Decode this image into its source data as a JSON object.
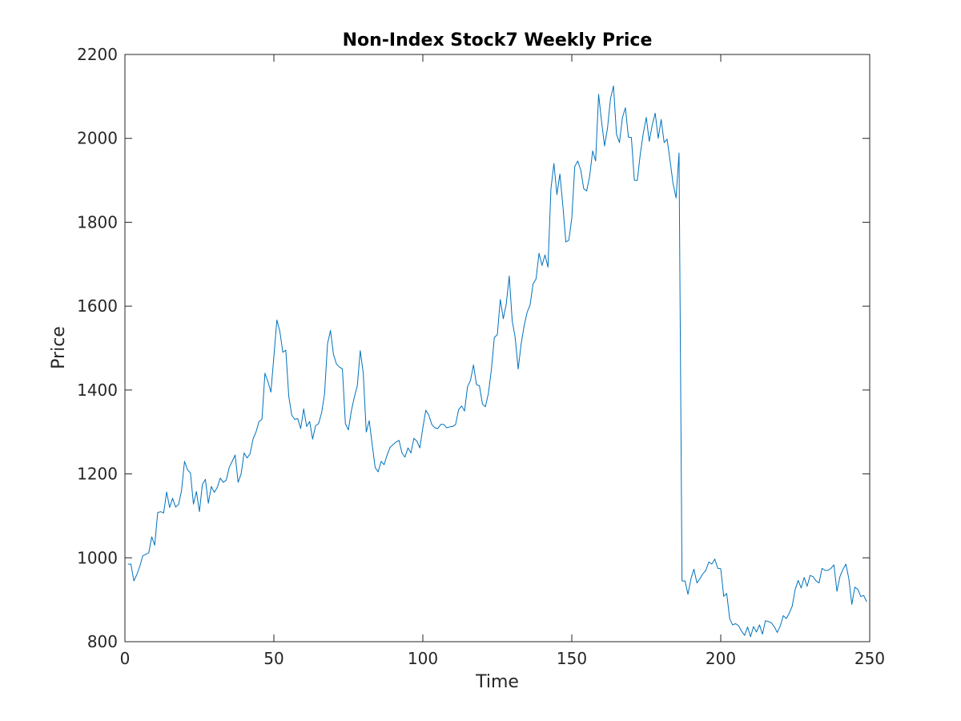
{
  "chart_data": {
    "type": "line",
    "title": "Non-Index Stock7 Weekly Price",
    "xlabel": "Time",
    "ylabel": "Price",
    "xlim": [
      0,
      250
    ],
    "ylim": [
      800,
      2200
    ],
    "xticks": [
      0,
      50,
      100,
      150,
      200,
      250
    ],
    "yticks": [
      800,
      1000,
      1200,
      1400,
      1600,
      1800,
      2000,
      2200
    ],
    "xtick_labels": [
      "0",
      "50",
      "100",
      "150",
      "200",
      "250"
    ],
    "ytick_labels": [
      "800",
      "1000",
      "1200",
      "1400",
      "1600",
      "1800",
      "2000",
      "2200"
    ],
    "grid": false,
    "series": [
      {
        "color": "#0072BD",
        "x": [
          1,
          2,
          3,
          4,
          5,
          6,
          7,
          8,
          9,
          10,
          11,
          12,
          13,
          14,
          15,
          16,
          17,
          18,
          19,
          20,
          21,
          22,
          23,
          24,
          25,
          26,
          27,
          28,
          29,
          30,
          31,
          32,
          33,
          34,
          35,
          36,
          37,
          38,
          39,
          40,
          41,
          42,
          43,
          44,
          45,
          46,
          47,
          48,
          49,
          50,
          51,
          52,
          53,
          54,
          55,
          56,
          57,
          58,
          59,
          60,
          61,
          62,
          63,
          64,
          65,
          66,
          67,
          68,
          69,
          70,
          71,
          72,
          73,
          74,
          75,
          76,
          77,
          78,
          79,
          80,
          81,
          82,
          83,
          84,
          85,
          86,
          87,
          88,
          89,
          90,
          91,
          92,
          93,
          94,
          95,
          96,
          97,
          98,
          99,
          100,
          101,
          102,
          103,
          104,
          105,
          106,
          107,
          108,
          109,
          110,
          111,
          112,
          113,
          114,
          115,
          116,
          117,
          118,
          119,
          120,
          121,
          122,
          123,
          124,
          125,
          126,
          127,
          128,
          129,
          130,
          131,
          132,
          133,
          134,
          135,
          136,
          137,
          138,
          139,
          140,
          141,
          142,
          143,
          144,
          145,
          146,
          147,
          148,
          149,
          150,
          151,
          152,
          153,
          154,
          155,
          156,
          157,
          158,
          159,
          160,
          161,
          162,
          163,
          164,
          165,
          166,
          167,
          168,
          169,
          170,
          171,
          172,
          173,
          174,
          175,
          176,
          177,
          178,
          179,
          180,
          181,
          182,
          183,
          184,
          185,
          186,
          187,
          188,
          189,
          190,
          191,
          192,
          193,
          194,
          195,
          196,
          197,
          198,
          199,
          200,
          201,
          202,
          203,
          204,
          205,
          206,
          207,
          208,
          209,
          210,
          211,
          212,
          213,
          214,
          215,
          216,
          217,
          218,
          219,
          220,
          221,
          222,
          223,
          224,
          225,
          226,
          227,
          228,
          229,
          230,
          231,
          232,
          233,
          234,
          235,
          236,
          237,
          238,
          239,
          240,
          241,
          242,
          243,
          244,
          245,
          246,
          247,
          248,
          249
        ],
        "y": [
          985,
          985,
          945,
          960,
          980,
          1005,
          1008,
          1012,
          1050,
          1030,
          1108,
          1110,
          1107,
          1157,
          1120,
          1142,
          1121,
          1127,
          1160,
          1230,
          1210,
          1202,
          1128,
          1158,
          1110,
          1175,
          1187,
          1130,
          1170,
          1156,
          1168,
          1190,
          1180,
          1185,
          1215,
          1230,
          1245,
          1180,
          1200,
          1250,
          1238,
          1248,
          1283,
          1300,
          1325,
          1330,
          1440,
          1420,
          1395,
          1480,
          1567,
          1540,
          1490,
          1495,
          1385,
          1340,
          1330,
          1332,
          1308,
          1355,
          1313,
          1325,
          1283,
          1315,
          1320,
          1345,
          1390,
          1510,
          1542,
          1485,
          1462,
          1455,
          1450,
          1320,
          1305,
          1350,
          1383,
          1410,
          1494,
          1440,
          1300,
          1327,
          1270,
          1215,
          1205,
          1230,
          1222,
          1245,
          1263,
          1270,
          1276,
          1280,
          1250,
          1240,
          1262,
          1250,
          1285,
          1278,
          1262,
          1310,
          1352,
          1340,
          1318,
          1310,
          1308,
          1318,
          1318,
          1310,
          1312,
          1313,
          1318,
          1353,
          1362,
          1350,
          1408,
          1423,
          1460,
          1413,
          1410,
          1367,
          1360,
          1392,
          1448,
          1525,
          1532,
          1616,
          1570,
          1605,
          1672,
          1565,
          1525,
          1450,
          1510,
          1553,
          1585,
          1603,
          1653,
          1665,
          1726,
          1697,
          1722,
          1693,
          1880,
          1940,
          1866,
          1915,
          1840,
          1753,
          1757,
          1810,
          1933,
          1946,
          1925,
          1880,
          1875,
          1910,
          1970,
          1946,
          2105,
          2040,
          1982,
          2025,
          2095,
          2125,
          2010,
          1990,
          2050,
          2073,
          2003,
          2002,
          1900,
          1900,
          1963,
          2012,
          2050,
          1993,
          2032,
          2060,
          2000,
          2045,
          1990,
          1998,
          1946,
          1892,
          1858,
          1965,
          945,
          945,
          913,
          950,
          973,
          940,
          950,
          962,
          970,
          990,
          985,
          997,
          975,
          974,
          908,
          915,
          855,
          840,
          843,
          838,
          825,
          815,
          835,
          812,
          836,
          823,
          840,
          818,
          850,
          848,
          845,
          835,
          822,
          838,
          862,
          855,
          868,
          885,
          925,
          946,
          928,
          953,
          932,
          958,
          955,
          945,
          940,
          975,
          970,
          970,
          975,
          983,
          920,
          955,
          972,
          985,
          950,
          889,
          930,
          925,
          908,
          910,
          895
        ]
      }
    ]
  }
}
